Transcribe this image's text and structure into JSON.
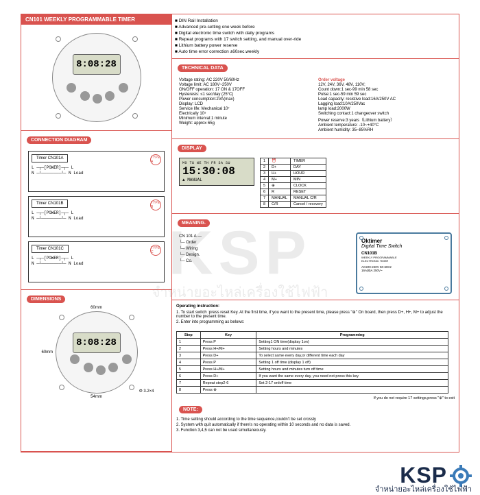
{
  "header": "CN101  WEEKLY PROGRAMMABLE TIMER",
  "timer": {
    "display": "8:08:28"
  },
  "sections": {
    "connection": "CONNECTION DIAGRAM",
    "dimensions": "DIMENSIONS",
    "technical": "TECHNICAL DATA",
    "display": "DISPLAY",
    "meaning": "MEANING.",
    "note": "NOTE:"
  },
  "bullets": [
    "DIN Rail Installation",
    "Advanced pre-setting one week before",
    "Digital electronic time switch with daily programs",
    "Repeat programs  with 17  switch  setting, and manual  over-ride",
    "Lithium battery power reserve",
    "Auto time error correction  ±60sec.weekly"
  ],
  "tech_left": [
    "Voltage rating: AC 220V  50/60Hz",
    "Voltage limit: AC 180V~250V",
    "ON/OFF operation: 17 ON & 17OFF",
    "Hysteresis: ≤1 sec/day (25°C)",
    "Power consumption:2VA(max)",
    "Display: LCD",
    "Service life:  Mechanical  10⁷",
    "                      Electrically  10⁵",
    "Minimum interval:1 minute",
    "Weight: approx 65g"
  ],
  "order_label": "Order voltage",
  "tech_right": [
    "12V, 24V, 36V, 48V, 110V;",
    "Count down:1 sec-99 min 58 sec",
    "Pulse:1 sec-59 min 59 sec",
    "Load capacity: resistive load:16A/250V AC",
    "                          Lagging load:10A/250Vac",
    "                          lamp load:2000W",
    "Switching contact:1 changeover switch",
    "Power reserve:3 years（Lithium battery）",
    "Ambient temperature: -10~+40°C",
    "Ambient humidity: 35~85%RH"
  ],
  "lcd": {
    "days": "MO TU WE TH FR SA SU",
    "time": "15:30:08",
    "manual": "MANUAL"
  },
  "btn_table": [
    [
      "1",
      "⏰",
      "TIMER"
    ],
    [
      "2",
      "D+",
      "DAY"
    ],
    [
      "3",
      "H+",
      "HOUR"
    ],
    [
      "4",
      "M+",
      "MIN"
    ],
    [
      "5",
      "⊕",
      "CLOCK"
    ],
    [
      "6",
      "R",
      "RESET"
    ],
    [
      "7",
      "MANUAL",
      "MANUAL C/R"
    ],
    [
      "8",
      "C/R",
      "Cancel / recovery"
    ]
  ],
  "meaning": {
    "code": "CN  101  A  —",
    "lines": [
      "Order",
      "Wiring",
      "Design.",
      "Co."
    ]
  },
  "oktimer": {
    "brand": "Oktimer",
    "title": "Digital Time Switch",
    "model": "CN101B",
    "sub1": "WEEKLY PROGRAMMABLE",
    "sub2": "ELECTRONIC TIMER",
    "spec1": "AC220-240V  50-60Hz",
    "spec2": "16A(8)A  250V~"
  },
  "instructions_title": "Operating instruction:",
  "instructions": [
    "1. To start switch :press reset Key. At the first time, if you want to the present time, please press \"⊕\" On board, then press  D+, H+, M+  to  adjust the number to the present time.",
    "2. Enter into programming as belows:"
  ],
  "prog_headers": [
    "Step",
    "Key",
    "Programming"
  ],
  "prog_rows": [
    [
      "1",
      "Press P",
      "Setting1 ON time(display 1on)"
    ],
    [
      "2",
      "Press H+/M+",
      "Setting hours and minutes"
    ],
    [
      "3",
      "Press D+",
      "To select same every day,or different time each day"
    ],
    [
      "4",
      "Press P",
      "Setting 1 off time (display 1 off)"
    ],
    [
      "5",
      "Press H+/M+",
      "Setting hours and minutes turn off time"
    ],
    [
      "6",
      "Press D+",
      "If you want the same every day, you need not press this key"
    ],
    [
      "7",
      "Repeat step2-6",
      "Set 2-17 on/off time"
    ],
    [
      "8",
      "Press ⊕",
      ""
    ]
  ],
  "prog_footer": "If you do not require 17 settings,press \"⊕\" to exit",
  "notes": [
    "1. Time setting should according to the time sequence,couldn't be set crossly",
    "2. System with quit automatically if there's no operating within 10 seconds and no data is saved.",
    "3. Function 3,4,5 can not be used simultaneously."
  ],
  "diagrams": [
    {
      "label": "Timer      CN101A",
      "type": "TYPE A"
    },
    {
      "label": "Timer      CN101B",
      "type": "TYPE B"
    },
    {
      "label": "Timer      CN101C",
      "type": "TYPE C"
    }
  ],
  "dims": {
    "w": "60mm",
    "h": "60mm",
    "d": "54mm",
    "r": "Φ 3.2×4"
  },
  "watermark": "KSP",
  "watermark_sub": "จำหน่ายอะไหล่เครื่องใช้ไฟฟ้า",
  "footer": {
    "brand": "KSP",
    "sub": "จำหน่ายอะไหล่เครื่องใช้ไฟฟ้า"
  }
}
